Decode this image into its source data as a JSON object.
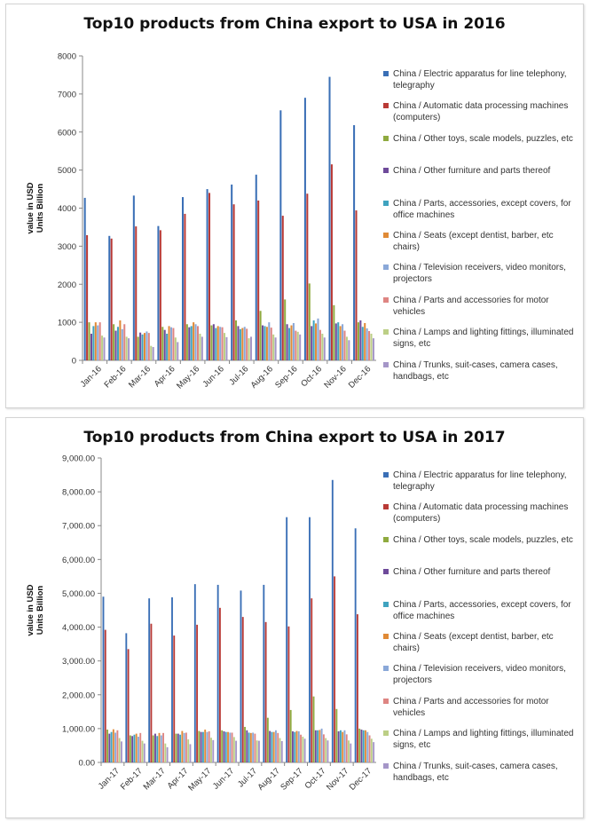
{
  "chart_data": [
    {
      "type": "bar",
      "title": "Top10 products from China export to USA in 2016",
      "ylabel": "value in USD Units Billion",
      "ylim": [
        0,
        8000
      ],
      "yticks": [
        "0",
        "1000",
        "2000",
        "3000",
        "4000",
        "5000",
        "6000",
        "7000",
        "8000"
      ],
      "yticks_values": [
        0,
        1000,
        2000,
        3000,
        4000,
        5000,
        6000,
        7000,
        8000
      ],
      "grid": false,
      "legend_position": "right",
      "categories": [
        "Jan-16",
        "Feb-16",
        "Mar-16",
        "Apr-16",
        "May-16",
        "Jun-16",
        "Jul-16",
        "Aug-16",
        "Sep-16",
        "Oct-16",
        "Nov-16",
        "Dec-16"
      ],
      "series": [
        {
          "name": "China / Electric apparatus for line telephony, telegraphy",
          "color": "#3a6fb6",
          "values": [
            4270,
            3270,
            4330,
            3530,
            4290,
            4500,
            4620,
            4880,
            6570,
            6900,
            7450,
            6180
          ]
        },
        {
          "name": "China / Automatic data processing machines (computers)",
          "color": "#b93a36",
          "values": [
            3290,
            3200,
            3520,
            3420,
            3850,
            4400,
            4100,
            4200,
            3800,
            4380,
            5150,
            3940
          ]
        },
        {
          "name": "China / Other toys, scale models, puzzles, etc",
          "color": "#8faa3f",
          "values": [
            1000,
            950,
            620,
            880,
            950,
            920,
            1050,
            1300,
            1600,
            2020,
            1450,
            1000
          ]
        },
        {
          "name": "China / Other furniture and parts thereof",
          "color": "#6e4a9a",
          "values": [
            700,
            780,
            730,
            800,
            870,
            950,
            900,
            920,
            950,
            900,
            970,
            1050
          ]
        },
        {
          "name": "China / Parts, accessories, except covers, for office machines",
          "color": "#3fa3bf",
          "values": [
            900,
            880,
            680,
            700,
            900,
            850,
            820,
            900,
            850,
            1050,
            1000,
            880
          ]
        },
        {
          "name": "China / Seats (except dentist, barber, etc chairs)",
          "color": "#e08a36",
          "values": [
            1000,
            1050,
            720,
            900,
            1000,
            900,
            850,
            880,
            920,
            970,
            900,
            980
          ]
        },
        {
          "name": "China / Television receivers, video monitors, projectors",
          "color": "#8aa8d8",
          "values": [
            920,
            820,
            760,
            870,
            950,
            880,
            880,
            1000,
            980,
            1100,
            950,
            840
          ]
        },
        {
          "name": "China / Parts and accessories for motor vehicles",
          "color": "#de8582",
          "values": [
            1000,
            950,
            720,
            850,
            900,
            870,
            830,
            860,
            780,
            800,
            780,
            770
          ]
        },
        {
          "name": "China / Lamps and lighting fittings, illuminated signs, etc",
          "color": "#bccf86",
          "values": [
            650,
            620,
            380,
            600,
            700,
            720,
            580,
            680,
            750,
            700,
            620,
            700
          ]
        },
        {
          "name": "China / Trunks, suit-cases, camera cases, handbags, etc",
          "color": "#a596c8",
          "values": [
            600,
            580,
            350,
            480,
            620,
            610,
            620,
            600,
            680,
            600,
            530,
            580
          ]
        }
      ]
    },
    {
      "type": "bar",
      "title": "Top10 products from China export to USA in 2017",
      "ylabel": "value in USD Units Billion",
      "ylim": [
        0,
        9000
      ],
      "yticks": [
        "0.00",
        "1,000.00",
        "2,000.00",
        "3,000.00",
        "4,000.00",
        "5,000.00",
        "6,000.00",
        "7,000.00",
        "8,000.00",
        "9,000.00"
      ],
      "yticks_values": [
        0,
        1000,
        2000,
        3000,
        4000,
        5000,
        6000,
        7000,
        8000,
        9000
      ],
      "grid": false,
      "legend_position": "right",
      "categories": [
        "Jan-17",
        "Feb-17",
        "Mar-17",
        "Apr-17",
        "May-17",
        "Jun-17",
        "Jul-17",
        "Aug-17",
        "Sep-17",
        "Oct-17",
        "Nov-17",
        "Dec-17"
      ],
      "series": [
        {
          "name": "China / Electric apparatus for line telephony, telegraphy",
          "color": "#3a6fb6",
          "values": [
            4900,
            3820,
            4850,
            4880,
            5270,
            5250,
            5080,
            5250,
            7250,
            7250,
            8350,
            6920
          ]
        },
        {
          "name": "China / Automatic data processing machines (computers)",
          "color": "#b93a36",
          "values": [
            3920,
            3350,
            4100,
            3750,
            4070,
            4570,
            4300,
            4150,
            4020,
            4850,
            5500,
            4380
          ]
        },
        {
          "name": "China / Other toys, scale models, puzzles, etc",
          "color": "#8faa3f",
          "values": [
            970,
            800,
            800,
            850,
            930,
            950,
            1050,
            1320,
            1550,
            1950,
            1580,
            1000
          ]
        },
        {
          "name": "China / Other furniture and parts thereof",
          "color": "#6e4a9a",
          "values": [
            850,
            780,
            850,
            850,
            900,
            920,
            950,
            930,
            920,
            950,
            920,
            970
          ]
        },
        {
          "name": "China / Parts, accessories, except covers, for office machines",
          "color": "#3fa3bf",
          "values": [
            900,
            820,
            780,
            820,
            900,
            900,
            880,
            900,
            900,
            950,
            950,
            950
          ]
        },
        {
          "name": "China / Seats (except dentist, barber, etc chairs)",
          "color": "#e08a36",
          "values": [
            980,
            850,
            870,
            930,
            970,
            900,
            870,
            900,
            930,
            960,
            900,
            950
          ]
        },
        {
          "name": "China / Television receivers, video monitors, projectors",
          "color": "#8aa8d8",
          "values": [
            880,
            760,
            800,
            870,
            900,
            880,
            880,
            950,
            920,
            1000,
            950,
            900
          ]
        },
        {
          "name": "China / Parts and accessories for motor vehicles",
          "color": "#de8582",
          "values": [
            950,
            870,
            870,
            880,
            920,
            880,
            850,
            870,
            820,
            830,
            830,
            800
          ]
        },
        {
          "name": "China / Lamps and lighting fittings, illuminated signs, etc",
          "color": "#bccf86",
          "values": [
            720,
            640,
            560,
            680,
            730,
            750,
            650,
            720,
            760,
            720,
            650,
            700
          ]
        },
        {
          "name": "China / Trunks, suit-cases, camera cases, handbags, etc",
          "color": "#a596c8",
          "values": [
            620,
            560,
            450,
            540,
            660,
            640,
            640,
            630,
            700,
            650,
            560,
            600
          ]
        }
      ]
    }
  ]
}
